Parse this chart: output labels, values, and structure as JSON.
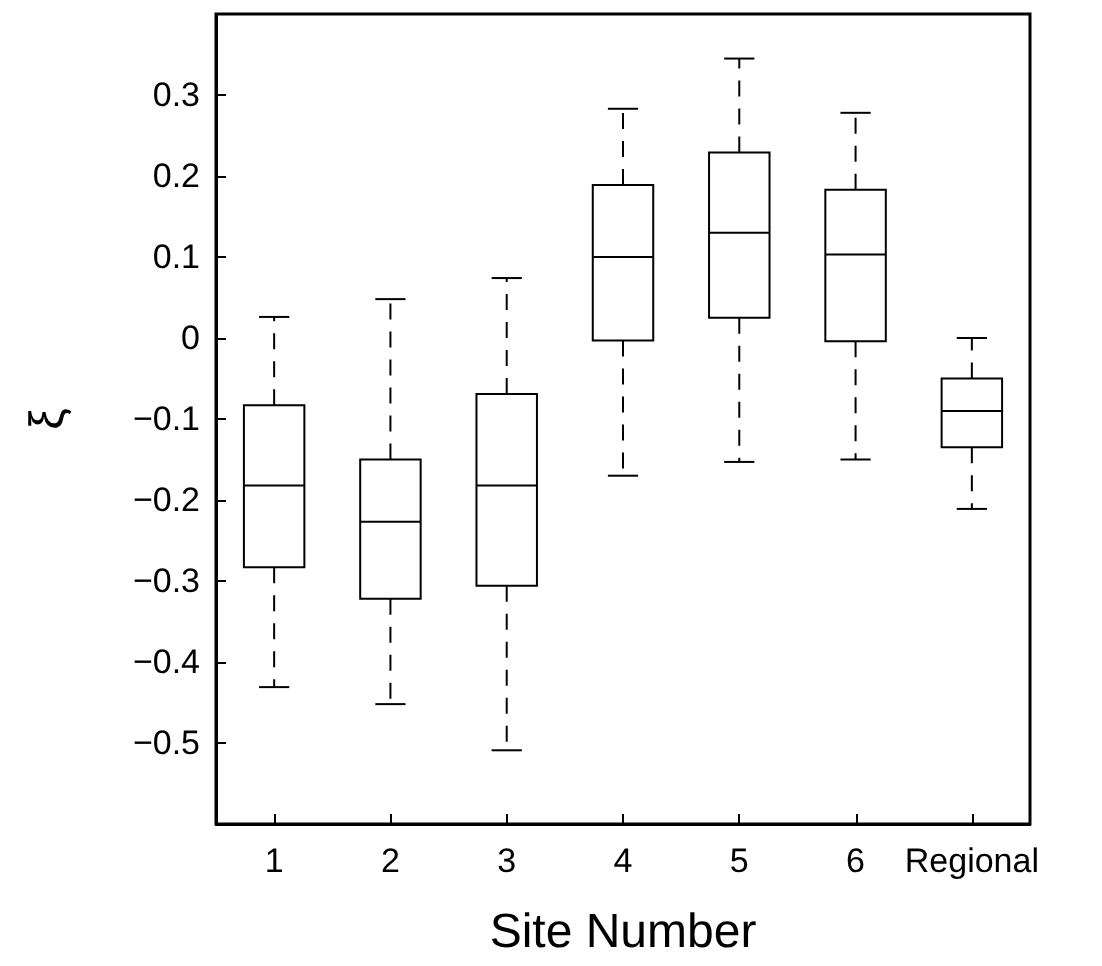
{
  "chart_data": {
    "type": "box",
    "xlabel": "Site Number",
    "ylabel": "ξ",
    "categories": [
      "1",
      "2",
      "3",
      "4",
      "5",
      "6",
      "Regional"
    ],
    "boxes": [
      {
        "low": -0.431,
        "q1": -0.283,
        "median": -0.182,
        "q3": -0.083,
        "high": 0.026
      },
      {
        "low": -0.452,
        "q1": -0.322,
        "median": -0.227,
        "q3": -0.15,
        "high": 0.048
      },
      {
        "low": -0.509,
        "q1": -0.306,
        "median": -0.182,
        "q3": -0.069,
        "high": 0.074
      },
      {
        "low": -0.17,
        "q1": -0.003,
        "median": 0.1,
        "q3": 0.189,
        "high": 0.283
      },
      {
        "low": -0.153,
        "q1": 0.025,
        "median": 0.13,
        "q3": 0.229,
        "high": 0.345
      },
      {
        "low": -0.15,
        "q1": -0.004,
        "median": 0.103,
        "q3": 0.183,
        "high": 0.278
      },
      {
        "low": -0.211,
        "q1": -0.135,
        "median": -0.09,
        "q3": -0.05,
        "high": 0
      }
    ],
    "ylim": [
      -0.6,
      0.4
    ],
    "yticks": [
      -0.5,
      -0.4,
      -0.3,
      -0.2,
      -0.1,
      0,
      0.1,
      0.2,
      0.3
    ],
    "grid": false
  }
}
